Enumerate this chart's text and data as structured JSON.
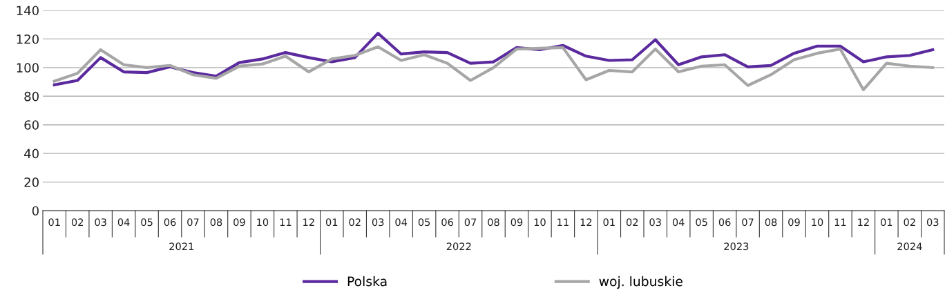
{
  "chart_data": {
    "type": "line",
    "categories": [
      "01",
      "02",
      "03",
      "04",
      "05",
      "06",
      "07",
      "08",
      "09",
      "10",
      "11",
      "12",
      "01",
      "02",
      "03",
      "04",
      "05",
      "06",
      "07",
      "08",
      "09",
      "10",
      "11",
      "12",
      "01",
      "02",
      "03",
      "04",
      "05",
      "06",
      "07",
      "08",
      "09",
      "10",
      "11",
      "12",
      "01",
      "02",
      "03"
    ],
    "annotations": [
      "2021",
      "2022",
      "2023",
      "2024"
    ],
    "series": [
      {
        "name": "Polska",
        "color": "#5b2a9e",
        "values": [
          88,
          91,
          107,
          97,
          96.5,
          100.5,
          96.5,
          94,
          103.5,
          106,
          110.5,
          107,
          104,
          107,
          124,
          109.5,
          111,
          110.5,
          103,
          104,
          114,
          112.5,
          115.5,
          108,
          105,
          105.5,
          119.5,
          102,
          107.5,
          109,
          100.5,
          101.5,
          110,
          115,
          115,
          104,
          107.5,
          108.5,
          112.5
        ]
      },
      {
        "name": "woj. lubuskie",
        "color": "#a6a6a6",
        "values": [
          90.5,
          96,
          112.5,
          102,
          100,
          101.5,
          95,
          92.5,
          101,
          102.5,
          108,
          97,
          106,
          108.5,
          114.5,
          105,
          109,
          103,
          91,
          100,
          113,
          113.5,
          114,
          91.5,
          98,
          97,
          113,
          97,
          101,
          102,
          87.5,
          95,
          105.5,
          110,
          113,
          84.5,
          103,
          101,
          100
        ]
      }
    ],
    "ylim": [
      0,
      140
    ],
    "yticks": [
      0,
      20,
      40,
      60,
      80,
      100,
      120,
      140
    ],
    "grid": "y",
    "legend": "bottom",
    "marker": "none",
    "line_style": "solid"
  }
}
